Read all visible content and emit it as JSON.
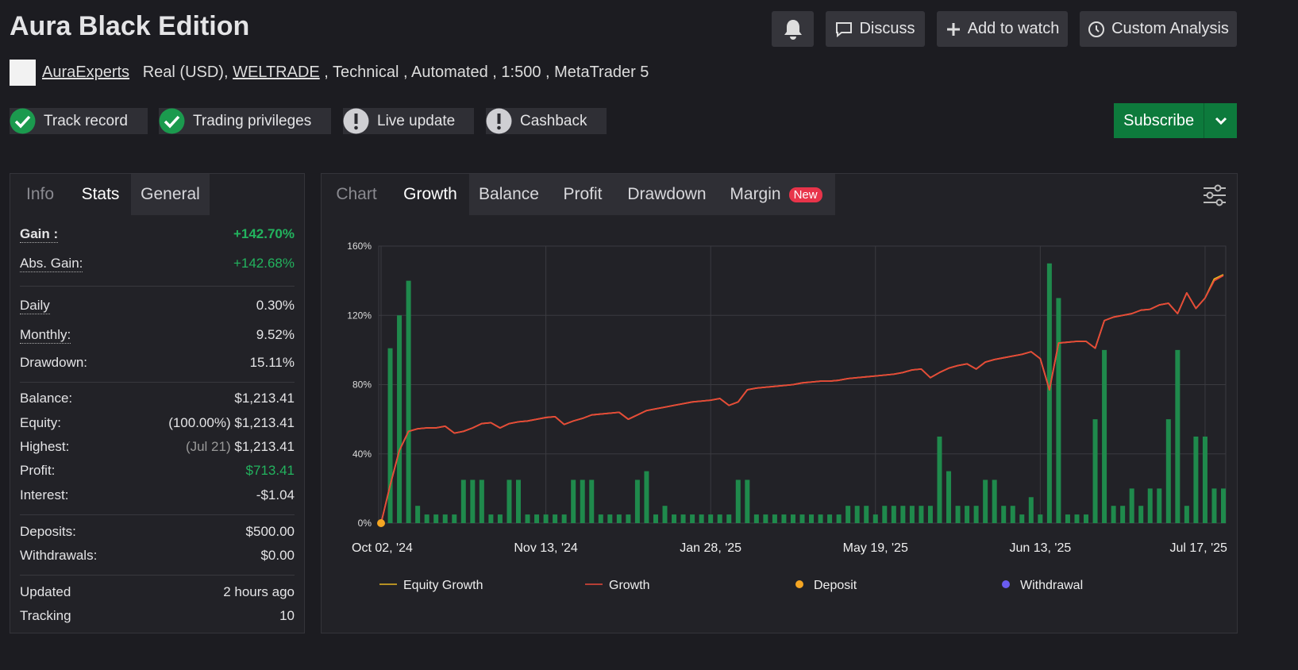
{
  "header": {
    "title": "Aura Black Edition",
    "buttons": [
      "Discuss",
      "Add to watch",
      "Custom Analysis"
    ],
    "author": "AuraExperts",
    "account": "Real (USD),",
    "broker": "WELTRADE",
    "details": ", Technical , Automated , 1:500 , MetaTrader 5",
    "badges": [
      "Track record",
      "Trading privileges",
      "Live update",
      "Cashback"
    ],
    "subscribe": "Subscribe"
  },
  "stats_tabs": [
    "Info",
    "Stats",
    "General"
  ],
  "stats": [
    [
      {
        "label": "Gain :",
        "value": "+142.70%"
      },
      {
        "label": "Abs. Gain:",
        "value": "+142.68%"
      }
    ],
    [
      {
        "label": "Daily",
        "value": "0.30%"
      },
      {
        "label": "Monthly:",
        "value": "9.52%"
      },
      {
        "label": "Drawdown:",
        "value": "15.11%"
      }
    ],
    [
      {
        "label": "Balance:",
        "value": "$1,213.41"
      },
      {
        "label": "Equity:",
        "note": "(100.00%)",
        "value": "$1,213.41"
      },
      {
        "label": "Highest:",
        "note": "(Jul 21)",
        "value": "$1,213.41"
      },
      {
        "label": "Profit:",
        "value": "$713.41"
      },
      {
        "label": "Interest:",
        "value": "-$1.04"
      }
    ],
    [
      {
        "label": "Deposits:",
        "value": "$500.00"
      },
      {
        "label": "Withdrawals:",
        "value": "$0.00"
      }
    ],
    [
      {
        "label": "Updated",
        "value": "2 hours ago"
      },
      {
        "label": "Tracking",
        "value": "10"
      }
    ]
  ],
  "chart_tabs": [
    "Chart",
    "Growth",
    "Balance",
    "Profit",
    "Drawdown",
    "Margin"
  ],
  "new_badge": "New",
  "chart_data": {
    "type": "line",
    "categories": [
      "Oct 02, '24",
      null,
      null,
      null,
      null,
      null,
      null,
      null,
      null,
      null,
      null,
      null,
      null,
      null,
      null,
      null,
      null,
      null,
      "Nov 13, '24",
      null,
      null,
      null,
      null,
      null,
      null,
      null,
      null,
      null,
      null,
      null,
      null,
      null,
      null,
      null,
      null,
      null,
      "Jan 28, '25",
      null,
      null,
      null,
      null,
      null,
      null,
      null,
      null,
      null,
      null,
      null,
      null,
      null,
      null,
      null,
      null,
      null,
      "May 19, '25",
      null,
      null,
      null,
      null,
      null,
      null,
      null,
      null,
      null,
      null,
      null,
      null,
      null,
      null,
      null,
      null,
      null,
      "Jun 13, '25",
      null,
      null,
      null,
      null,
      null,
      null,
      null,
      null,
      null,
      null,
      null,
      null,
      null,
      null,
      null,
      null,
      null,
      "Jul 17, '25",
      null,
      null
    ],
    "ylim": [
      0,
      160
    ],
    "yticks": [
      {
        "value": 0,
        "label": "0%"
      },
      {
        "value": 40,
        "label": "40%"
      },
      {
        "value": 80,
        "label": "80%"
      },
      {
        "value": 120,
        "label": "120%"
      },
      {
        "value": 160,
        "label": "160%"
      }
    ],
    "grid": true,
    "bars": {
      "color": "#1f8a4c",
      "values": [
        null,
        101,
        120,
        140,
        10,
        5,
        5,
        5,
        5,
        25,
        25,
        25,
        5,
        5,
        25,
        25,
        5,
        5,
        5,
        5,
        5,
        25,
        25,
        25,
        5,
        5,
        5,
        5,
        25,
        30,
        5,
        10,
        5,
        5,
        5,
        5,
        5,
        5,
        5,
        25,
        25,
        5,
        5,
        5,
        5,
        5,
        5,
        5,
        5,
        5,
        5,
        10,
        10,
        10,
        5,
        10,
        10,
        10,
        10,
        10,
        10,
        50,
        30,
        10,
        10,
        10,
        25,
        25,
        10,
        10,
        5,
        15,
        5,
        150,
        130,
        5,
        5,
        5,
        60,
        100,
        10,
        10,
        20,
        10,
        20,
        20,
        60,
        100,
        10,
        50,
        50,
        20,
        20
      ]
    },
    "series": [
      {
        "name": "Equity Growth",
        "color": "#e6b422",
        "values": [
          0,
          22,
          42,
          53,
          54.5,
          55,
          55,
          56,
          52,
          53,
          55,
          57.5,
          58,
          55,
          57.5,
          58.5,
          59,
          60,
          61,
          61.5,
          57,
          59,
          60.5,
          62.5,
          63,
          63.5,
          64,
          60,
          62.5,
          65,
          66,
          67,
          68,
          69,
          70,
          70.5,
          71,
          72,
          68,
          70,
          77,
          78,
          78.5,
          79,
          79.5,
          80,
          81,
          81.5,
          82,
          82,
          82.5,
          83.5,
          84,
          84.5,
          85,
          85.5,
          86,
          87,
          88.5,
          89,
          84,
          87,
          89.5,
          91,
          92,
          89,
          93,
          94.5,
          95.5,
          96.5,
          97.5,
          99,
          95,
          77,
          104,
          104.5,
          105,
          105,
          101,
          117,
          119,
          120,
          121,
          123,
          123.5,
          126,
          127,
          121,
          133,
          124,
          130,
          141,
          143.5
        ]
      },
      {
        "name": "Growth",
        "color": "#e8473a",
        "values": [
          0,
          22,
          42,
          53,
          54.5,
          55,
          55,
          56,
          52,
          53,
          55,
          57.5,
          58,
          55,
          57.5,
          58.5,
          59,
          60,
          61,
          61.5,
          57,
          59,
          60.5,
          62.5,
          63,
          63.5,
          64,
          60,
          62.5,
          65,
          66,
          67,
          68,
          69,
          70,
          70.5,
          71,
          72,
          68,
          70,
          77,
          78,
          78.5,
          79,
          79.5,
          80,
          81,
          81.5,
          82,
          82,
          82.5,
          83.5,
          84,
          84.5,
          85,
          85.5,
          86,
          87,
          88.5,
          89,
          84,
          87,
          89.5,
          91,
          92,
          89,
          93,
          94.5,
          95.5,
          96.5,
          97.5,
          99,
          95,
          77,
          104,
          104.5,
          105,
          105,
          101,
          117,
          119,
          120,
          121,
          123,
          123.5,
          126,
          127,
          121,
          133,
          124,
          130,
          140,
          143
        ]
      }
    ],
    "markers": [
      {
        "name": "Deposit",
        "color": "#f5a623",
        "x": [
          0
        ],
        "values": [
          0
        ]
      },
      {
        "name": "Withdrawal",
        "color": "#6a5cf0",
        "x": [],
        "values": []
      }
    ]
  }
}
